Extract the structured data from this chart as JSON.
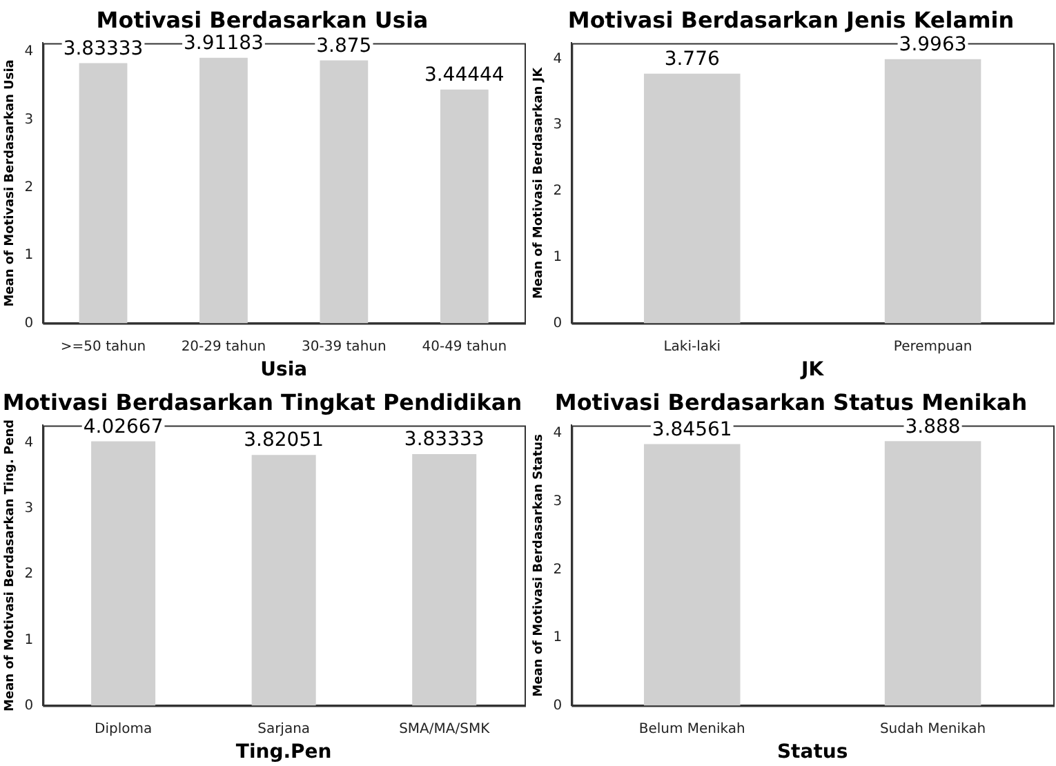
{
  "chart_data": [
    {
      "type": "bar",
      "title": "Motivasi Berdasarkan Usia",
      "xlabel": "Usia",
      "ylabel": "Mean of Motivasi Berdasarkan Usia",
      "categories": [
        ">=50 tahun",
        "20-29 tahun",
        "30-39 tahun",
        "40-49 tahun"
      ],
      "values": [
        3.83333,
        3.91183,
        3.875,
        3.44444
      ],
      "color": "#d0d0d0",
      "ylim": [
        0,
        4.13
      ],
      "yticks": [
        0,
        1,
        2,
        3,
        4
      ],
      "data_labels": true,
      "grid": false,
      "legend": false
    },
    {
      "type": "bar",
      "title": "Motivasi Berdasarkan Jenis Kelamin",
      "xlabel": "JK",
      "ylabel": "Mean of Motivasi Berdasarkan JK",
      "categories": [
        "Laki-laki",
        "Perempuan"
      ],
      "values": [
        3.776,
        3.9963
      ],
      "color": "#d0d0d0",
      "ylim": [
        0,
        4.24
      ],
      "yticks": [
        0,
        1,
        2,
        3,
        4
      ],
      "data_labels": true,
      "grid": false,
      "legend": false
    },
    {
      "type": "bar",
      "title": "Motivasi Berdasarkan Tingkat Pendidikan",
      "xlabel": "Ting.Pen",
      "ylabel": "Mean of Motivasi Berdasarkan Ting. Pend",
      "categories": [
        "Diploma",
        "Sarjana",
        "SMA/MA/SMK"
      ],
      "values": [
        4.02667,
        3.82051,
        3.83333
      ],
      "color": "#d0d0d0",
      "ylim": [
        0,
        4.27
      ],
      "yticks": [
        0,
        1,
        2,
        3,
        4
      ],
      "data_labels": true,
      "grid": false,
      "legend": false
    },
    {
      "type": "bar",
      "title": "Motivasi Berdasarkan Status Menikah",
      "xlabel": "Status",
      "ylabel": "Mean of Motivasi Berdasarkan Status",
      "categories": [
        "Belum Menikah",
        "Sudah Menikah"
      ],
      "values": [
        3.84561,
        3.888
      ],
      "color": "#d0d0d0",
      "ylim": [
        0,
        4.12
      ],
      "yticks": [
        0,
        1,
        2,
        3,
        4
      ],
      "data_labels": true,
      "grid": false,
      "legend": false
    }
  ]
}
